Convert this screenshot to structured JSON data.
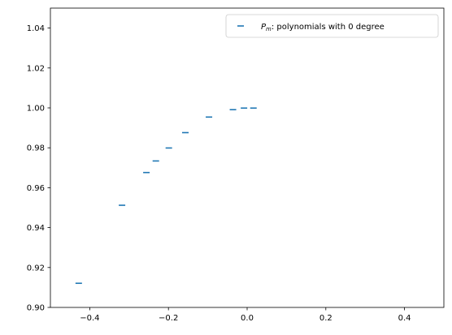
{
  "chart_data": {
    "type": "scatter",
    "marker": "horizontal-dash",
    "title": "",
    "xlabel": "",
    "ylabel": "",
    "xlim": [
      -0.5,
      0.5
    ],
    "ylim": [
      0.9,
      1.05
    ],
    "xticks": [
      -0.4,
      -0.2,
      0.0,
      0.2,
      0.4
    ],
    "xtick_labels": [
      "−0.4",
      "−0.2",
      "0.0",
      "0.2",
      "0.4"
    ],
    "yticks": [
      0.9,
      0.92,
      0.94,
      0.96,
      0.98,
      1.0,
      1.02,
      1.04
    ],
    "ytick_labels": [
      "0.90",
      "0.92",
      "0.94",
      "0.96",
      "0.98",
      "1.00",
      "1.02",
      "1.04"
    ],
    "grid": false,
    "legend_position": "top-right",
    "series": [
      {
        "name": "P_m: polynomials with 0 degree",
        "legend_symbol": "P",
        "legend_subscript": "m",
        "legend_suffix": ": polynomials with 0 degree",
        "color": "#1f77b4",
        "points": [
          {
            "x": -0.428,
            "y": 0.9121
          },
          {
            "x": -0.318,
            "y": 0.9512
          },
          {
            "x": -0.256,
            "y": 0.9676
          },
          {
            "x": -0.232,
            "y": 0.9734
          },
          {
            "x": -0.199,
            "y": 0.9799
          },
          {
            "x": -0.157,
            "y": 0.9876
          },
          {
            "x": -0.097,
            "y": 0.9954
          },
          {
            "x": -0.036,
            "y": 0.9991
          },
          {
            "x": -0.008,
            "y": 0.9999
          },
          {
            "x": 0.016,
            "y": 0.9999
          }
        ]
      }
    ]
  }
}
